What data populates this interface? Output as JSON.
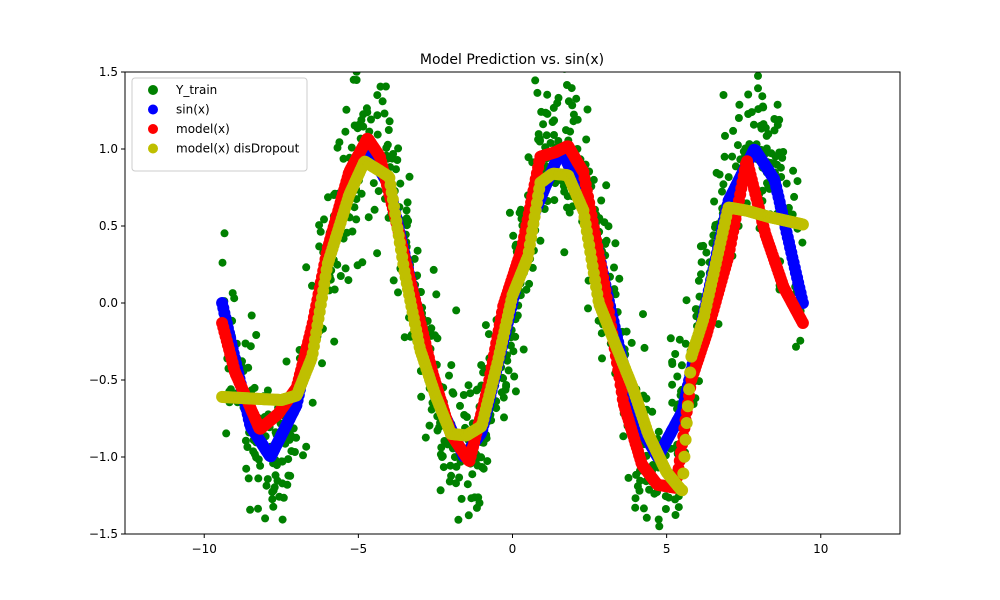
{
  "chart_data": {
    "type": "scatter",
    "title": "Model Prediction vs. sin(x)",
    "xlabel": "",
    "ylabel": "",
    "xlim": [
      -12.57,
      12.57
    ],
    "ylim": [
      -1.5,
      1.5
    ],
    "x_ticks": [
      -10,
      -5,
      0,
      5,
      10
    ],
    "x_tick_labels": [
      "−10",
      "−5",
      "0",
      "5",
      "10"
    ],
    "y_ticks": [
      -1.5,
      -1.0,
      -0.5,
      0.0,
      0.5,
      1.0,
      1.5
    ],
    "y_tick_labels": [
      "−1.5",
      "−1.0",
      "−0.5",
      "0.0",
      "0.5",
      "1.0",
      "1.5"
    ],
    "grid": false,
    "legend_position": "top-left",
    "series": [
      {
        "name": "Y_train",
        "color": "#008000",
        "style": "scatter-noisy",
        "x_range": [
          -9.42,
          9.42
        ],
        "function": "sin(x) + noise",
        "noise_amplitude": 0.5,
        "num_points": 1000
      },
      {
        "name": "sin(x)",
        "color": "#0000ff",
        "style": "thick-line",
        "x": [
          -9.42,
          -8.5,
          -7.85,
          -7.0,
          -6.0,
          -5.5,
          -4.71,
          -4.0,
          -3.14,
          -2.5,
          -1.57,
          -1.0,
          0.0,
          0.5,
          1.57,
          2.5,
          3.14,
          4.0,
          4.71,
          5.5,
          6.28,
          7.0,
          7.85,
          8.5,
          9.42
        ],
        "y": [
          0.0,
          -0.8,
          -1.0,
          -0.66,
          0.28,
          0.71,
          1.0,
          0.76,
          0.0,
          -0.6,
          -1.0,
          -0.84,
          0.0,
          0.48,
          1.0,
          0.6,
          0.0,
          -0.76,
          -1.0,
          -0.71,
          0.0,
          0.66,
          1.0,
          0.8,
          0.0
        ]
      },
      {
        "name": "model(x)",
        "color": "#ff0000",
        "style": "thick-line",
        "x": [
          -9.42,
          -9.0,
          -8.2,
          -7.6,
          -7.0,
          -6.5,
          -6.0,
          -5.3,
          -4.7,
          -4.3,
          -3.8,
          -3.2,
          -2.6,
          -2.0,
          -1.4,
          -0.8,
          -0.3,
          0.3,
          0.9,
          1.4,
          1.8,
          2.3,
          3.0,
          3.6,
          4.2,
          4.7,
          5.3,
          5.8,
          6.3,
          7.0,
          7.6,
          8.2,
          8.8,
          9.42
        ],
        "y": [
          -0.13,
          -0.45,
          -0.82,
          -0.72,
          -0.55,
          -0.15,
          0.35,
          0.85,
          1.07,
          0.95,
          0.55,
          0.05,
          -0.45,
          -0.85,
          -1.03,
          -0.55,
          -0.02,
          0.35,
          0.95,
          0.98,
          1.02,
          0.85,
          0.1,
          -0.65,
          -1.05,
          -1.18,
          -1.2,
          -0.5,
          -0.2,
          0.3,
          0.93,
          0.45,
          0.1,
          -0.13
        ]
      },
      {
        "name": "model(x) disDropout",
        "color": "#bfbf00",
        "style": "thick-line",
        "x": [
          -9.42,
          -8.5,
          -7.5,
          -7.0,
          -6.5,
          -6.0,
          -5.3,
          -4.8,
          -4.0,
          -3.5,
          -3.0,
          -2.5,
          -2.0,
          -1.5,
          -1.0,
          -0.5,
          0.0,
          0.5,
          0.9,
          1.3,
          1.8,
          2.3,
          2.8,
          3.3,
          3.9,
          4.4,
          5.0,
          5.5,
          5.8,
          6.2,
          7.0,
          7.6,
          8.3,
          9.42
        ],
        "y": [
          -0.61,
          -0.62,
          -0.63,
          -0.6,
          -0.35,
          0.25,
          0.7,
          0.92,
          0.82,
          0.2,
          -0.3,
          -0.6,
          -0.85,
          -0.86,
          -0.8,
          -0.4,
          0.05,
          0.3,
          0.78,
          0.84,
          0.83,
          0.6,
          0.0,
          -0.25,
          -0.55,
          -0.85,
          -1.1,
          -1.22,
          -0.35,
          -0.1,
          0.62,
          0.6,
          0.56,
          0.51
        ]
      }
    ]
  }
}
